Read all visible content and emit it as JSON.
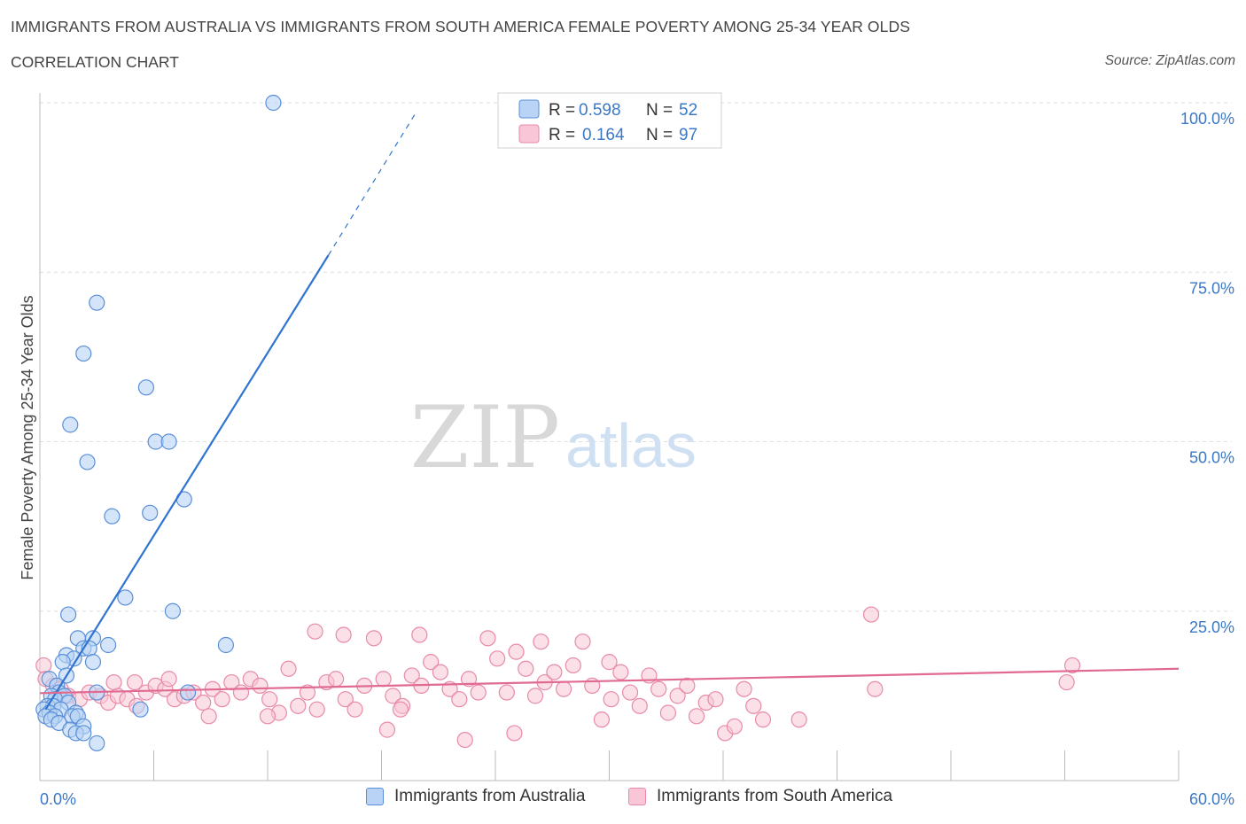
{
  "header": {
    "title": "IMMIGRANTS FROM AUSTRALIA VS IMMIGRANTS FROM SOUTH AMERICA FEMALE POVERTY AMONG 25-34 YEAR OLDS",
    "subtitle": "CORRELATION CHART",
    "source": "Source: ZipAtlas.com"
  },
  "watermark": {
    "zip": "ZIP",
    "atlas": "atlas"
  },
  "colors": {
    "australia_fill": "#b8d3f5",
    "australia_stroke": "#5a8fd8",
    "australia_line": "#2f74d0",
    "south_america_fill": "#f8c6d6",
    "south_america_stroke": "#e88aa8",
    "south_america_line": "#e06a92",
    "axis_label": "#3b78c8",
    "grid": "#dddddd"
  },
  "stats_box": {
    "rows": [
      {
        "r_label": "R =",
        "r_value": "0.598",
        "n_label": "N =",
        "n_value": "52"
      },
      {
        "r_label": "R =",
        "r_value": "0.164",
        "n_label": "N =",
        "n_value": "97"
      }
    ]
  },
  "legend": {
    "australia": "Immigrants from Australia",
    "south_america": "Immigrants from South America"
  },
  "chart_data": {
    "type": "scatter",
    "title": "IMMIGRANTS FROM AUSTRALIA VS IMMIGRANTS FROM SOUTH AMERICA FEMALE POVERTY AMONG 25-34 YEAR OLDS",
    "ylabel": "Female Poverty Among 25-34 Year Olds",
    "xlabel": "",
    "xlim": [
      0,
      60
    ],
    "ylim": [
      0,
      100
    ],
    "x_tick_labels": [
      "0.0%",
      "60.0%"
    ],
    "y_tick_labels": [
      {
        "value": 25,
        "label": "25.0%"
      },
      {
        "value": 50,
        "label": "50.0%"
      },
      {
        "value": 75,
        "label": "75.0%"
      },
      {
        "value": 100,
        "label": "100.0%"
      }
    ],
    "series": [
      {
        "name": "Immigrants from Australia",
        "r": 0.598,
        "n": 52,
        "trend": {
          "x0": 0.3,
          "y0": 10.5,
          "x1": 15.2,
          "y1": 77.5,
          "dash_to_x": 19.8,
          "dash_to_y": 98.5
        },
        "points": [
          [
            12.3,
            100.0
          ],
          [
            3.0,
            70.5
          ],
          [
            2.3,
            63.0
          ],
          [
            5.6,
            58.0
          ],
          [
            1.6,
            52.5
          ],
          [
            6.1,
            50.0
          ],
          [
            6.8,
            50.0
          ],
          [
            2.5,
            47.0
          ],
          [
            7.6,
            41.5
          ],
          [
            3.8,
            39.0
          ],
          [
            5.8,
            39.5
          ],
          [
            4.5,
            27.0
          ],
          [
            7.0,
            25.0
          ],
          [
            1.5,
            24.5
          ],
          [
            2.0,
            21.0
          ],
          [
            2.8,
            21.0
          ],
          [
            3.6,
            20.0
          ],
          [
            9.8,
            20.0
          ],
          [
            2.3,
            19.5
          ],
          [
            2.6,
            19.5
          ],
          [
            1.4,
            18.5
          ],
          [
            1.8,
            18.0
          ],
          [
            1.2,
            17.5
          ],
          [
            2.8,
            17.5
          ],
          [
            1.4,
            15.5
          ],
          [
            0.5,
            15.0
          ],
          [
            0.9,
            14.0
          ],
          [
            1.0,
            13.0
          ],
          [
            3.0,
            13.0
          ],
          [
            7.8,
            13.0
          ],
          [
            0.6,
            12.5
          ],
          [
            1.3,
            12.5
          ],
          [
            0.8,
            12.0
          ],
          [
            1.5,
            11.5
          ],
          [
            0.4,
            11.0
          ],
          [
            0.7,
            11.0
          ],
          [
            1.1,
            10.5
          ],
          [
            0.2,
            10.5
          ],
          [
            0.5,
            10.0
          ],
          [
            1.9,
            10.0
          ],
          [
            0.3,
            9.5
          ],
          [
            0.8,
            9.5
          ],
          [
            1.7,
            9.5
          ],
          [
            2.0,
            9.5
          ],
          [
            0.6,
            9.0
          ],
          [
            5.3,
            10.5
          ],
          [
            1.0,
            8.5
          ],
          [
            2.3,
            8.0
          ],
          [
            1.6,
            7.5
          ],
          [
            1.9,
            7.0
          ],
          [
            2.3,
            7.0
          ],
          [
            3.0,
            5.5
          ]
        ]
      },
      {
        "name": "Immigrants from South America",
        "r": 0.164,
        "n": 97,
        "trend": {
          "x0": 0.0,
          "y0": 12.9,
          "x1": 60.0,
          "y1": 16.5
        },
        "points": [
          [
            0.2,
            17.0
          ],
          [
            0.3,
            15.0
          ],
          [
            0.7,
            14.0
          ],
          [
            1.1,
            13.5
          ],
          [
            1.5,
            12.5
          ],
          [
            2.1,
            12.0
          ],
          [
            2.6,
            13.0
          ],
          [
            3.2,
            12.5
          ],
          [
            3.6,
            11.5
          ],
          [
            4.1,
            12.5
          ],
          [
            4.6,
            12.0
          ],
          [
            5.1,
            11.0
          ],
          [
            5.6,
            13.0
          ],
          [
            6.1,
            14.0
          ],
          [
            6.6,
            13.5
          ],
          [
            7.1,
            12.0
          ],
          [
            7.6,
            12.5
          ],
          [
            8.1,
            13.0
          ],
          [
            8.6,
            11.5
          ],
          [
            9.1,
            13.5
          ],
          [
            9.6,
            12.0
          ],
          [
            10.1,
            14.5
          ],
          [
            10.6,
            13.0
          ],
          [
            11.1,
            15.0
          ],
          [
            11.6,
            14.0
          ],
          [
            12.1,
            12.0
          ],
          [
            12.6,
            10.0
          ],
          [
            13.1,
            16.5
          ],
          [
            13.6,
            11.0
          ],
          [
            14.1,
            13.0
          ],
          [
            14.6,
            10.5
          ],
          [
            15.1,
            14.5
          ],
          [
            15.6,
            15.0
          ],
          [
            16.1,
            12.0
          ],
          [
            16.6,
            10.5
          ],
          [
            17.1,
            14.0
          ],
          [
            17.6,
            21.0
          ],
          [
            18.1,
            15.0
          ],
          [
            18.6,
            12.5
          ],
          [
            19.1,
            11.0
          ],
          [
            19.6,
            15.5
          ],
          [
            20.1,
            14.0
          ],
          [
            20.6,
            17.5
          ],
          [
            21.1,
            16.0
          ],
          [
            21.6,
            13.5
          ],
          [
            22.1,
            12.0
          ],
          [
            22.6,
            15.0
          ],
          [
            23.1,
            13.0
          ],
          [
            23.6,
            21.0
          ],
          [
            24.1,
            18.0
          ],
          [
            24.6,
            13.0
          ],
          [
            25.1,
            19.0
          ],
          [
            25.6,
            16.5
          ],
          [
            26.1,
            12.5
          ],
          [
            26.6,
            14.5
          ],
          [
            27.1,
            16.0
          ],
          [
            27.6,
            13.5
          ],
          [
            28.1,
            17.0
          ],
          [
            28.6,
            20.5
          ],
          [
            29.1,
            14.0
          ],
          [
            29.6,
            9.0
          ],
          [
            30.1,
            12.0
          ],
          [
            30.6,
            16.0
          ],
          [
            31.1,
            13.0
          ],
          [
            31.6,
            11.0
          ],
          [
            32.1,
            15.5
          ],
          [
            32.6,
            13.5
          ],
          [
            33.1,
            10.0
          ],
          [
            33.6,
            12.5
          ],
          [
            34.1,
            14.0
          ],
          [
            34.6,
            9.5
          ],
          [
            35.1,
            11.5
          ],
          [
            35.6,
            12.0
          ],
          [
            36.1,
            7.0
          ],
          [
            36.6,
            8.0
          ],
          [
            37.1,
            13.5
          ],
          [
            37.6,
            11.0
          ],
          [
            38.1,
            9.0
          ],
          [
            5.0,
            14.5
          ],
          [
            6.8,
            15.0
          ],
          [
            8.9,
            9.5
          ],
          [
            12.0,
            9.5
          ],
          [
            14.5,
            22.0
          ],
          [
            16.0,
            21.5
          ],
          [
            18.3,
            7.5
          ],
          [
            20.0,
            21.5
          ],
          [
            22.4,
            6.0
          ],
          [
            25.0,
            7.0
          ],
          [
            26.4,
            20.5
          ],
          [
            30.0,
            17.5
          ],
          [
            40.0,
            9.0
          ],
          [
            43.8,
            24.5
          ],
          [
            44.0,
            13.5
          ],
          [
            54.1,
            14.5
          ],
          [
            54.4,
            17.0
          ],
          [
            19.0,
            10.5
          ],
          [
            3.9,
            14.5
          ]
        ]
      }
    ]
  }
}
